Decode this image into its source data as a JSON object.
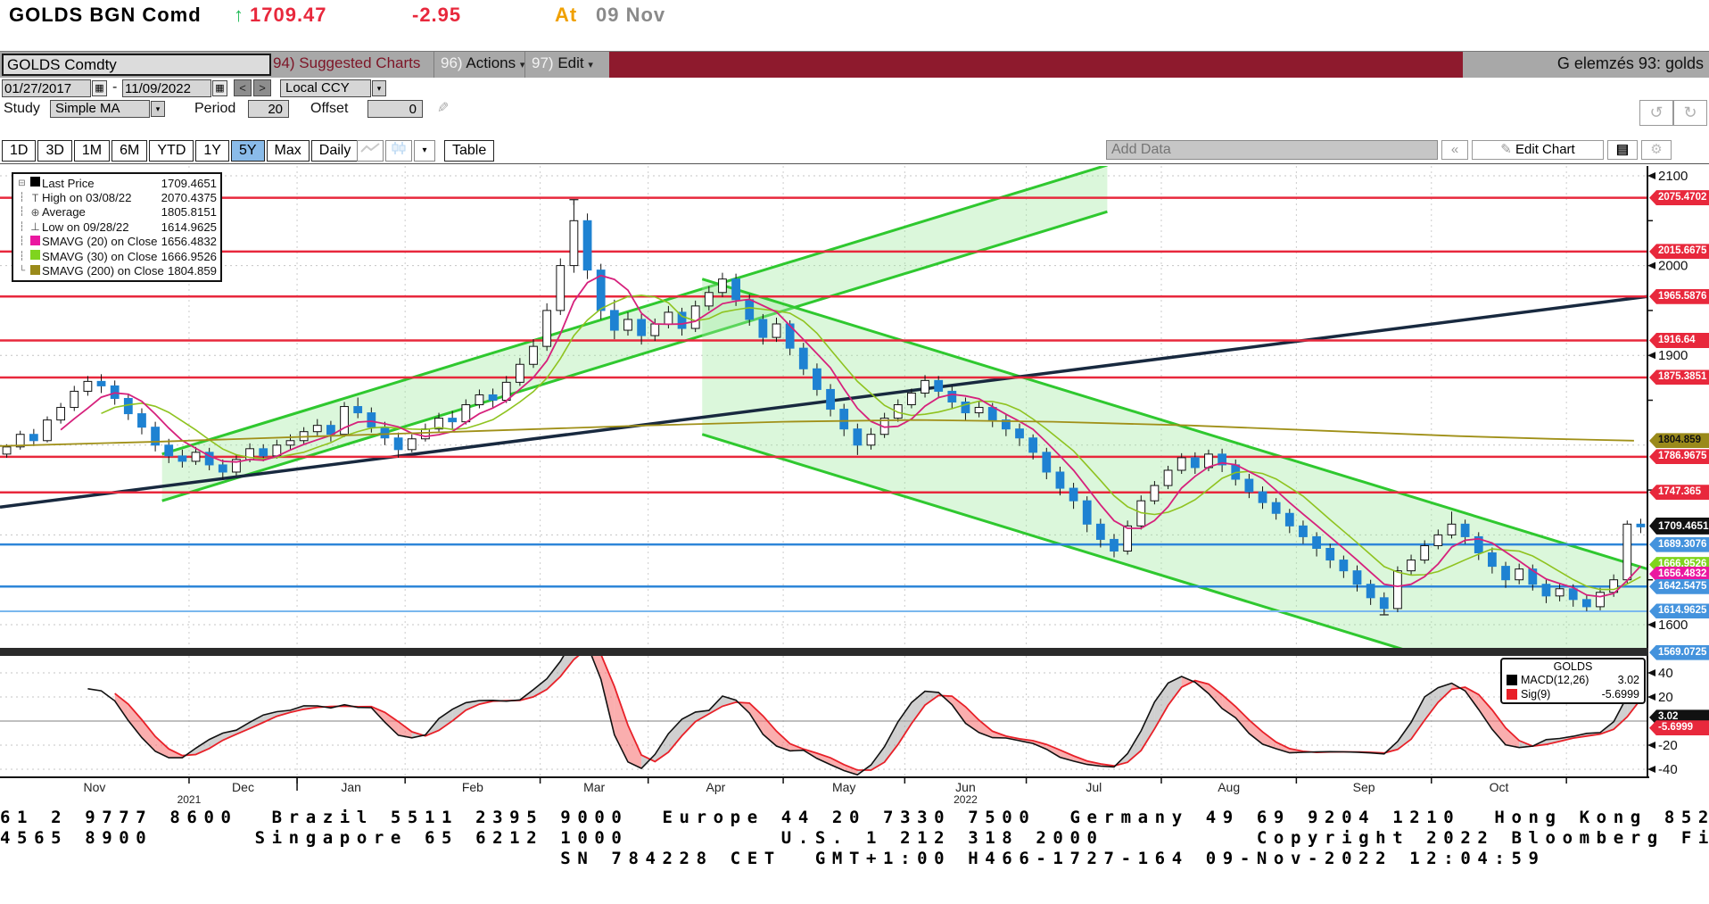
{
  "top_bar": {
    "security": "GOLDS BGN Comd",
    "arrow": "↑",
    "last": "1709.47",
    "change": "-2.95",
    "at_label": "At",
    "date": "09 Nov"
  },
  "toolbar": {
    "ticker_input": "GOLDS Comdty",
    "suggested": "94) Suggested Charts",
    "actions_num": "96)",
    "actions_label": "Actions",
    "edit_num": "97)",
    "edit_label": "Edit",
    "right_note": "G elemzés 93: golds"
  },
  "controls": {
    "date_from": "01/27/2017",
    "date_sep": "-",
    "date_to": "11/09/2022",
    "prev": "<",
    "next": ">",
    "ccy": "Local CCY",
    "study_label": "Study",
    "study_value": "Simple MA",
    "period_label": "Period",
    "period_value": "20",
    "offset_label": "Offset",
    "offset_value": "0"
  },
  "icons": {
    "calendar": "▦",
    "dropdown": "▾",
    "dropdown_solid": "▼",
    "undo": "↺",
    "redo": "↻",
    "pencil": "✎",
    "gear": "⚙",
    "collapse": "«",
    "notes": "▤",
    "table_caret": "▾"
  },
  "tabs": {
    "items": [
      "1D",
      "3D",
      "1M",
      "6M",
      "YTD",
      "1Y",
      "5Y",
      "Max"
    ],
    "selected": "5Y",
    "freq": "Daily ▼",
    "table_label": "Table",
    "add_data": "Add Data",
    "edit_chart": "Edit Chart"
  },
  "legend": {
    "rows": [
      {
        "rail": "⊟",
        "marker": "sq",
        "color": "#000000",
        "label": "Last Price",
        "value": "1709.4651"
      },
      {
        "rail": "┆",
        "marker": "T",
        "color": "#555555",
        "label": "High on 03/08/22",
        "value": "2070.4375"
      },
      {
        "rail": "┆",
        "marker": "⊕",
        "color": "#555555",
        "label": "Average",
        "value": "1805.8151"
      },
      {
        "rail": "┆",
        "marker": "⊥",
        "color": "#555555",
        "label": "Low on 09/28/22",
        "value": "1614.9625"
      },
      {
        "rail": "┆",
        "marker": "sq",
        "color": "#ea18a0",
        "label": "SMAVG (20)  on Close",
        "value": "1656.4832"
      },
      {
        "rail": "┆",
        "marker": "sq",
        "color": "#7fd41e",
        "label": "SMAVG (30)  on Close",
        "value": "1666.9526"
      },
      {
        "rail": "└",
        "marker": "sq",
        "color": "#9a8a1a",
        "label": "SMAVG (200)  on Close",
        "value": "1804.859"
      }
    ]
  },
  "macd_legend": {
    "title": "GOLDS",
    "rows": [
      {
        "color": "#000000",
        "label": "MACD(12,26)",
        "value": "3.02"
      },
      {
        "color": "#e82028",
        "label": "Sig(9)",
        "value": "-5.6999"
      }
    ]
  },
  "footer": {
    "line1": "61 2 9777 8600  Brazil 5511 2395 9000  Europe 44 20 7330 7500  Germany 49 69 9204 1210  Hong Kong 852 ",
    "line2": "4565 8900      Singapore 65 6212 1000         U.S. 1 212 318 2000         Copyright 2022 Bloomberg Fi",
    "line3": "                                 SN 784228 CET  GMT+1:00 H466-1727-164 09-Nov-2022 12:04:59"
  },
  "chart_data": {
    "type": "candlestick",
    "title": "GOLDS Comdty daily candles with SMAVG overlays and MACD(12,26) study",
    "y_axis": {
      "min": 1571,
      "max": 2111,
      "plain_ticks": [
        2100,
        2000,
        1900,
        1600
      ],
      "minor_ticks": [
        2050,
        1950,
        1850,
        1750,
        1650
      ],
      "grid": [
        2100,
        2000,
        1900,
        1800,
        1700,
        1600
      ]
    },
    "price_labels": [
      {
        "v": 2075.4702,
        "text": "2075.4702",
        "bg": "#e8283c",
        "fg": "#ffffff"
      },
      {
        "v": 2015.6675,
        "text": "2015.6675",
        "bg": "#e8283c",
        "fg": "#ffffff"
      },
      {
        "v": 1965.5876,
        "text": "1965.5876",
        "bg": "#e8283c",
        "fg": "#ffffff"
      },
      {
        "v": 1916.64,
        "text": "1916.64",
        "bg": "#e8283c",
        "fg": "#ffffff"
      },
      {
        "v": 1875.3851,
        "text": "1875.3851",
        "bg": "#e8283c",
        "fg": "#ffffff"
      },
      {
        "v": 1804.859,
        "text": "1804.859",
        "bg": "#9a8a1a",
        "fg": "#111111"
      },
      {
        "v": 1786.9675,
        "text": "1786.9675",
        "bg": "#e8283c",
        "fg": "#ffffff"
      },
      {
        "v": 1747.365,
        "text": "1747.365",
        "bg": "#e8283c",
        "fg": "#ffffff"
      },
      {
        "v": 1666.9526,
        "text": "1666.9526",
        "bg": "#7fd41e",
        "fg": "#ffffff"
      },
      {
        "v": 1656.4832,
        "text": "1656.4832",
        "bg": "#ea18a0",
        "fg": "#ffffff"
      },
      {
        "v": 1689.3076,
        "text": "1689.3076",
        "bg": "#4493dd",
        "fg": "#ffffff"
      },
      {
        "v": 1642.5475,
        "text": "1642.5475",
        "bg": "#4493dd",
        "fg": "#ffffff"
      },
      {
        "v": 1614.9625,
        "text": "1614.9625",
        "bg": "#4493dd",
        "fg": "#ffffff"
      },
      {
        "v": 1569.0725,
        "text": "1569.0725",
        "bg": "#4493dd",
        "fg": "#ffffff"
      },
      {
        "v": 1709.4651,
        "text": "1709.4651",
        "bg": "#111111",
        "fg": "#ffffff",
        "big": true
      }
    ],
    "h_lines": [
      {
        "v": 2075.4702,
        "color": "#e8283c",
        "w": 2.5
      },
      {
        "v": 2015.6675,
        "color": "#e8283c",
        "w": 2.5
      },
      {
        "v": 1965.5876,
        "color": "#e8283c",
        "w": 2.5
      },
      {
        "v": 1916.64,
        "color": "#e8283c",
        "w": 2.5
      },
      {
        "v": 1875.3851,
        "color": "#e8283c",
        "w": 2.5
      },
      {
        "v": 1786.9675,
        "color": "#e8283c",
        "w": 2.5
      },
      {
        "v": 1747.365,
        "color": "#e8283c",
        "w": 2.5
      },
      {
        "v": 1689.3076,
        "color": "#2e86d8",
        "w": 2.5
      },
      {
        "v": 1642.5475,
        "color": "#2e86d8",
        "w": 2.5
      },
      {
        "v": 1614.9625,
        "color": "#7ab8ee",
        "w": 2
      }
    ],
    "months": [
      [
        "Nov",
        0,
        14
      ],
      [
        "Dec",
        14,
        22
      ],
      [
        "Jan",
        22,
        30
      ],
      [
        "Feb",
        30,
        40
      ],
      [
        "Mar",
        40,
        48
      ],
      [
        "Apr",
        48,
        58
      ],
      [
        "May",
        58,
        67
      ],
      [
        "Jun",
        67,
        76
      ],
      [
        "Jul",
        76,
        86
      ],
      [
        "Aug",
        86,
        96
      ],
      [
        "Sep",
        96,
        106
      ],
      [
        "Oct",
        106,
        116
      ]
    ],
    "years": [
      [
        "2021",
        14
      ],
      [
        "2022",
        71.5
      ]
    ],
    "candles": [
      [
        1790,
        1801,
        1786,
        1798
      ],
      [
        1798,
        1816,
        1795,
        1812
      ],
      [
        1812,
        1818,
        1799,
        1805
      ],
      [
        1805,
        1832,
        1803,
        1828
      ],
      [
        1828,
        1847,
        1824,
        1842
      ],
      [
        1842,
        1866,
        1838,
        1860
      ],
      [
        1860,
        1877,
        1855,
        1871
      ],
      [
        1871,
        1879,
        1858,
        1866
      ],
      [
        1866,
        1872,
        1845,
        1852
      ],
      [
        1852,
        1856,
        1828,
        1835
      ],
      [
        1835,
        1841,
        1812,
        1820
      ],
      [
        1820,
        1826,
        1793,
        1800
      ],
      [
        1800,
        1807,
        1780,
        1788
      ],
      [
        1788,
        1795,
        1775,
        1782
      ],
      [
        1782,
        1798,
        1778,
        1792
      ],
      [
        1792,
        1797,
        1772,
        1778
      ],
      [
        1778,
        1784,
        1762,
        1770
      ],
      [
        1770,
        1790,
        1766,
        1784
      ],
      [
        1784,
        1802,
        1781,
        1796
      ],
      [
        1796,
        1801,
        1782,
        1788
      ],
      [
        1788,
        1806,
        1785,
        1800
      ],
      [
        1800,
        1812,
        1794,
        1805
      ],
      [
        1805,
        1820,
        1800,
        1815
      ],
      [
        1815,
        1829,
        1810,
        1822
      ],
      [
        1822,
        1827,
        1804,
        1812
      ],
      [
        1812,
        1848,
        1809,
        1843
      ],
      [
        1843,
        1853,
        1830,
        1836
      ],
      [
        1836,
        1842,
        1814,
        1820
      ],
      [
        1820,
        1826,
        1800,
        1808
      ],
      [
        1808,
        1814,
        1786,
        1795
      ],
      [
        1795,
        1812,
        1792,
        1807
      ],
      [
        1807,
        1824,
        1804,
        1818
      ],
      [
        1818,
        1836,
        1815,
        1830
      ],
      [
        1830,
        1838,
        1818,
        1826
      ],
      [
        1826,
        1851,
        1823,
        1845
      ],
      [
        1845,
        1862,
        1841,
        1856
      ],
      [
        1856,
        1863,
        1842,
        1850
      ],
      [
        1850,
        1877,
        1847,
        1870
      ],
      [
        1870,
        1897,
        1866,
        1890
      ],
      [
        1890,
        1918,
        1886,
        1910
      ],
      [
        1910,
        1958,
        1905,
        1950
      ],
      [
        1950,
        2008,
        1945,
        2000
      ],
      [
        2000,
        2070,
        1992,
        2050
      ],
      [
        2050,
        2058,
        1985,
        1995
      ],
      [
        1995,
        2002,
        1940,
        1950
      ],
      [
        1950,
        1962,
        1918,
        1928
      ],
      [
        1928,
        1948,
        1922,
        1940
      ],
      [
        1940,
        1946,
        1912,
        1922
      ],
      [
        1922,
        1941,
        1916,
        1935
      ],
      [
        1935,
        1955,
        1930,
        1948
      ],
      [
        1948,
        1953,
        1922,
        1930
      ],
      [
        1930,
        1961,
        1926,
        1955
      ],
      [
        1955,
        1977,
        1950,
        1970
      ],
      [
        1970,
        1992,
        1965,
        1985
      ],
      [
        1985,
        1991,
        1955,
        1962
      ],
      [
        1962,
        1968,
        1933,
        1940
      ],
      [
        1940,
        1946,
        1912,
        1920
      ],
      [
        1920,
        1942,
        1915,
        1935
      ],
      [
        1935,
        1939,
        1900,
        1908
      ],
      [
        1908,
        1914,
        1878,
        1885
      ],
      [
        1885,
        1891,
        1855,
        1862
      ],
      [
        1862,
        1868,
        1832,
        1840
      ],
      [
        1840,
        1846,
        1810,
        1818
      ],
      [
        1818,
        1824,
        1789,
        1800
      ],
      [
        1800,
        1819,
        1795,
        1812
      ],
      [
        1812,
        1836,
        1808,
        1830
      ],
      [
        1830,
        1851,
        1826,
        1845
      ],
      [
        1845,
        1863,
        1841,
        1858
      ],
      [
        1858,
        1878,
        1853,
        1872
      ],
      [
        1872,
        1877,
        1852,
        1860
      ],
      [
        1860,
        1866,
        1840,
        1848
      ],
      [
        1848,
        1853,
        1828,
        1836
      ],
      [
        1836,
        1849,
        1831,
        1842
      ],
      [
        1842,
        1847,
        1820,
        1828
      ],
      [
        1828,
        1834,
        1810,
        1818
      ],
      [
        1818,
        1824,
        1799,
        1808
      ],
      [
        1808,
        1812,
        1784,
        1792
      ],
      [
        1792,
        1797,
        1762,
        1770
      ],
      [
        1770,
        1776,
        1744,
        1752
      ],
      [
        1752,
        1758,
        1729,
        1738
      ],
      [
        1738,
        1743,
        1703,
        1712
      ],
      [
        1712,
        1718,
        1686,
        1695
      ],
      [
        1695,
        1701,
        1675,
        1682
      ],
      [
        1682,
        1716,
        1678,
        1710
      ],
      [
        1710,
        1744,
        1706,
        1738
      ],
      [
        1738,
        1760,
        1734,
        1755
      ],
      [
        1755,
        1777,
        1751,
        1772
      ],
      [
        1772,
        1791,
        1768,
        1786
      ],
      [
        1786,
        1792,
        1768,
        1775
      ],
      [
        1775,
        1795,
        1771,
        1790
      ],
      [
        1790,
        1796,
        1770,
        1778
      ],
      [
        1778,
        1784,
        1755,
        1762
      ],
      [
        1762,
        1768,
        1741,
        1748
      ],
      [
        1748,
        1754,
        1729,
        1736
      ],
      [
        1736,
        1741,
        1717,
        1724
      ],
      [
        1724,
        1729,
        1702,
        1710
      ],
      [
        1710,
        1716,
        1690,
        1698
      ],
      [
        1698,
        1703,
        1676,
        1685
      ],
      [
        1685,
        1690,
        1663,
        1672
      ],
      [
        1672,
        1677,
        1652,
        1660
      ],
      [
        1660,
        1666,
        1637,
        1645
      ],
      [
        1645,
        1650,
        1622,
        1630
      ],
      [
        1630,
        1636,
        1615,
        1618
      ],
      [
        1618,
        1665,
        1614,
        1660
      ],
      [
        1660,
        1678,
        1655,
        1672
      ],
      [
        1672,
        1694,
        1668,
        1688
      ],
      [
        1688,
        1706,
        1684,
        1700
      ],
      [
        1700,
        1726,
        1696,
        1712
      ],
      [
        1712,
        1717,
        1690,
        1698
      ],
      [
        1698,
        1703,
        1672,
        1680
      ],
      [
        1680,
        1686,
        1657,
        1665
      ],
      [
        1665,
        1670,
        1641,
        1650
      ],
      [
        1650,
        1668,
        1645,
        1662
      ],
      [
        1662,
        1667,
        1638,
        1645
      ],
      [
        1645,
        1650,
        1624,
        1632
      ],
      [
        1632,
        1646,
        1626,
        1640
      ],
      [
        1640,
        1645,
        1620,
        1628
      ],
      [
        1628,
        1633,
        1615,
        1620
      ],
      [
        1620,
        1641,
        1616,
        1636
      ],
      [
        1636,
        1656,
        1631,
        1650
      ],
      [
        1650,
        1716,
        1646,
        1712
      ],
      [
        1712,
        1718,
        1702,
        1709
      ]
    ],
    "ma": {
      "sma20": {
        "window": 5,
        "color": "#d6217c"
      },
      "sma30": {
        "window": 8,
        "color": "#8fc320"
      },
      "sma200": {
        "color": "#a09018",
        "anchors": [
          [
            0,
            1799
          ],
          [
            12,
            1804
          ],
          [
            24,
            1810
          ],
          [
            36,
            1816
          ],
          [
            48,
            1822
          ],
          [
            58,
            1826
          ],
          [
            68,
            1828
          ],
          [
            78,
            1826
          ],
          [
            88,
            1822
          ],
          [
            98,
            1816
          ],
          [
            108,
            1810
          ],
          [
            115,
            1807
          ],
          [
            121,
            1805
          ]
        ]
      }
    },
    "trend_line": {
      "from": [
        0,
        1731
      ],
      "to": [
        122,
        1965.59
      ],
      "color": "#18293f",
      "w": 3.5
    },
    "channels": [
      {
        "upper": [
          [
            12,
            1790
          ],
          [
            82,
            2112
          ]
        ],
        "lower": [
          [
            12,
            1738
          ],
          [
            82,
            2060
          ]
        ],
        "stroke": "#2fc82f",
        "fill": "rgba(160,235,160,0.38)"
      },
      {
        "upper": [
          [
            52,
            1985
          ],
          [
            122,
            1662
          ]
        ],
        "lower": [
          [
            52,
            1812
          ],
          [
            122,
            1489
          ]
        ],
        "stroke": "#2fc82f",
        "fill": "rgba(160,235,160,0.38)"
      }
    ],
    "high_marker": {
      "step": 42,
      "price": 2070.44
    },
    "low_marker": {
      "step": 102,
      "price": 1614.96
    },
    "macd": {
      "fast": 3,
      "slow": 7,
      "signal": 3,
      "axis_ticks": [
        40,
        20,
        -20,
        -40
      ],
      "value_labels": [
        {
          "v": 3.02,
          "text": "3.02",
          "bg": "#111111",
          "fg": "#ffffff"
        },
        {
          "v": -5.6999,
          "text": "-5.6999",
          "bg": "#e8283c",
          "fg": "#ffffff"
        }
      ],
      "line_color": "#111111",
      "signal_color": "#e82028",
      "fill_pos": "rgba(170,170,170,0.55)",
      "fill_neg": "rgba(246,120,120,0.6)"
    }
  }
}
